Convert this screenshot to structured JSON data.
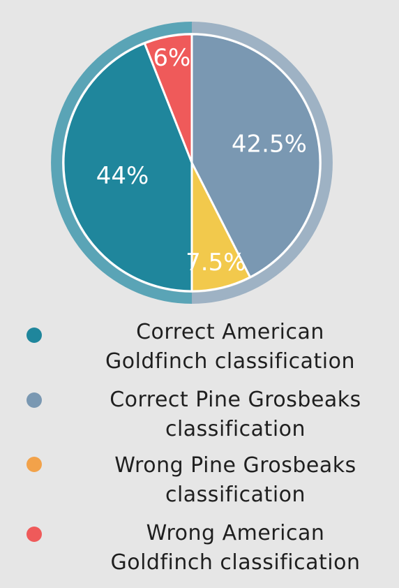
{
  "chart_data": {
    "type": "pie",
    "series": [
      {
        "name": "Correct American Goldfinch classification",
        "value": 44,
        "label": "44%",
        "color": "#1f869c",
        "legend_color": "#1f869c",
        "ring_color": "#5aa4b6",
        "legend_lines": [
          "Correct American",
          "Goldfinch classification"
        ]
      },
      {
        "name": "Correct Pine Grosbeaks classification",
        "value": 42.5,
        "label": "42.5%",
        "color": "#7a98b2",
        "legend_color": "#7a98b2",
        "ring_color": "#9eb2c4",
        "legend_lines": [
          "Correct Pine Grosbeaks",
          "classification"
        ]
      },
      {
        "name": "Wrong Pine Grosbeaks classification",
        "value": 7.5,
        "label": "7.5%",
        "color": "#f2c94c",
        "legend_color": "#f2a24a",
        "ring_color": "#9eb2c4",
        "legend_lines": [
          "Wrong Pine Grosbeaks",
          "classification"
        ]
      },
      {
        "name": "Wrong American Goldfinch classification",
        "value": 6,
        "label": "6%",
        "color": "#ef5a5a",
        "legend_color": "#ef5a5a",
        "ring_color": "#5aa4b6",
        "legend_lines": [
          "Wrong American",
          "Goldfinch classification"
        ]
      }
    ],
    "legend_position": "bottom",
    "title": ""
  }
}
